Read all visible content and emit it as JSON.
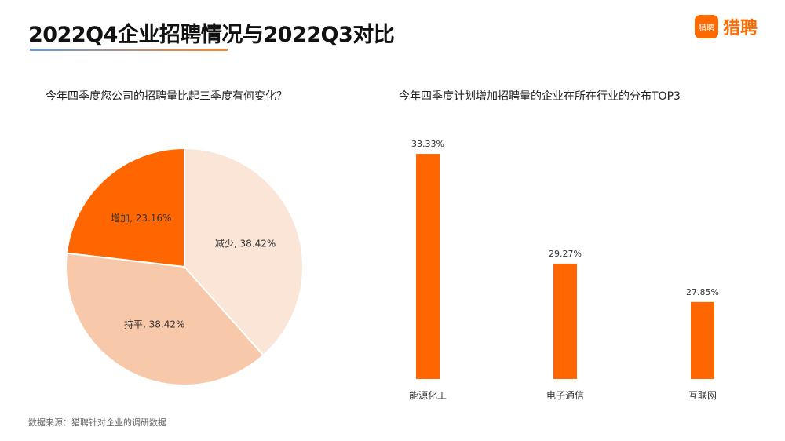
{
  "header": {
    "title": "2022Q4企业招聘情况与2022Q3对比",
    "logo_badge": "猎聘",
    "logo_text": "猎聘"
  },
  "source": "数据来源：猎聘针对企业的调研数据",
  "colors": {
    "accent": "#ff6600",
    "light1": "#fae5d6",
    "light2": "#f7c9aa"
  },
  "chart_data": [
    {
      "type": "pie",
      "title": "今年四季度您公司的招聘量比起三季度有何变化？",
      "slices": [
        {
          "label": "减少",
          "value": 38.42,
          "text": "减少, 38.42%",
          "color": "#fae5d6"
        },
        {
          "label": "持平",
          "value": 38.42,
          "text": "持平, 38.42%",
          "color": "#f7c9aa"
        },
        {
          "label": "增加",
          "value": 23.16,
          "text": "增加, 23.16%",
          "color": "#ff6600"
        }
      ]
    },
    {
      "type": "bar",
      "title": "今年四季度计划增加招聘量的企业在所在行业的分布TOP3",
      "categories": [
        "能源化工",
        "电子通信",
        "互联网"
      ],
      "values": [
        33.33,
        29.27,
        27.85
      ],
      "labels": [
        "33.33%",
        "29.27%",
        "27.85%"
      ],
      "ylim": [
        25,
        34
      ]
    }
  ]
}
